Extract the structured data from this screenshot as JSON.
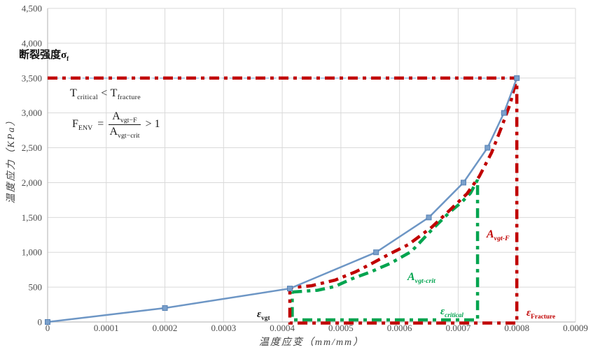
{
  "colors": {
    "series_blue": "#6D96C5",
    "marker_fill": "#7AA0CB",
    "marker_stroke": "#5580B3",
    "accent_red": "#C00000",
    "accent_green": "#00A44F",
    "reference_blue": "#9DC3E6",
    "gridline": "#D9D9D9",
    "axis_line": "#BFBFBF",
    "tick_text": "#4d4d4d"
  },
  "chart_data": {
    "type": "line",
    "title": "",
    "xlabel": "温度应变（mm/mm）",
    "ylabel": "温度应力（KPa）",
    "xlim": [
      0,
      0.0009
    ],
    "ylim": [
      0,
      4500
    ],
    "grid": true,
    "x_ticks": [
      {
        "v": 0,
        "label": "0"
      },
      {
        "v": 0.0001,
        "label": "0.0001"
      },
      {
        "v": 0.0002,
        "label": "0.0002"
      },
      {
        "v": 0.0003,
        "label": "0.0003"
      },
      {
        "v": 0.0004,
        "label": "0.0004"
      },
      {
        "v": 0.0005,
        "label": "0.0005"
      },
      {
        "v": 0.0006,
        "label": "0.0006"
      },
      {
        "v": 0.0007,
        "label": "0.0007"
      },
      {
        "v": 0.0008,
        "label": "0.0008"
      },
      {
        "v": 0.0009,
        "label": "0.0009"
      }
    ],
    "y_ticks": [
      {
        "v": 0,
        "label": "0"
      },
      {
        "v": 500,
        "label": "500"
      },
      {
        "v": 1000,
        "label": "1,000"
      },
      {
        "v": 1500,
        "label": "1,500"
      },
      {
        "v": 2000,
        "label": "2,000"
      },
      {
        "v": 2500,
        "label": "2,500"
      },
      {
        "v": 3000,
        "label": "3,000"
      },
      {
        "v": 3500,
        "label": "3,500"
      },
      {
        "v": 4000,
        "label": "4,000"
      },
      {
        "v": 4500,
        "label": "4,500"
      }
    ],
    "reference_line": {
      "name": "fracture-strength-level",
      "color": "#9DC3E6",
      "style": "dashed",
      "y": 3500,
      "x_from": 0,
      "x_to": 0.0008
    },
    "series": [
      {
        "name": "critical-envelope-Avgt-crit",
        "color": "#00A44F",
        "style": "dash-dot",
        "width": 4.5,
        "marker": "none",
        "path": [
          [
            0.000417,
            430
          ],
          [
            0.00046,
            455
          ],
          [
            0.00049,
            510
          ],
          [
            0.000519,
            620
          ],
          [
            0.000551,
            720
          ],
          [
            0.000584,
            840
          ],
          [
            0.00062,
            1010
          ],
          [
            0.000657,
            1340
          ],
          [
            0.000686,
            1580
          ],
          [
            0.000706,
            1720
          ],
          [
            0.000721,
            1850
          ],
          [
            0.000733,
            2040
          ],
          [
            0.000733,
            30
          ],
          [
            0.000417,
            30
          ],
          [
            0.000417,
            430
          ]
        ]
      },
      {
        "name": "fracture-envelope-Avgt-F",
        "color": "#C00000",
        "style": "dash-dot",
        "width": 4.5,
        "marker": "none",
        "path": [
          [
            0,
            3500
          ],
          [
            0.0008,
            3500
          ],
          [
            0.0008,
            -15
          ],
          [
            0.000413,
            -15
          ],
          [
            0.000413,
            490
          ],
          [
            0.00045,
            520
          ],
          [
            0.00049,
            600
          ],
          [
            0.000525,
            720
          ],
          [
            0.000555,
            850
          ],
          [
            0.000584,
            980
          ],
          [
            0.000615,
            1110
          ],
          [
            0.000655,
            1360
          ],
          [
            0.00069,
            1640
          ],
          [
            0.000715,
            1840
          ],
          [
            0.000736,
            2090
          ],
          [
            0.000757,
            2430
          ],
          [
            0.000775,
            2820
          ],
          [
            0.000789,
            3140
          ],
          [
            0.0008,
            3500
          ]
        ]
      },
      {
        "name": "temperature-stress-curve",
        "color": "#6D96C5",
        "style": "solid",
        "width": 2.5,
        "marker": "square",
        "points": [
          [
            0,
            0
          ],
          [
            0.0002,
            200
          ],
          [
            0.000413,
            480
          ],
          [
            0.00056,
            1000
          ],
          [
            0.00065,
            1500
          ],
          [
            0.000709,
            2000
          ],
          [
            0.00075,
            2500
          ],
          [
            0.000778,
            3000
          ],
          [
            0.0008,
            3500
          ]
        ]
      }
    ]
  },
  "annotations": {
    "fracture_strength": {
      "text": "断裂强度σ",
      "sub": "f"
    },
    "t_compare": {
      "t1": "T",
      "t1_sub": "critical",
      "op": "<",
      "t2": "T",
      "t2_sub": "fracture"
    },
    "formula": {
      "lhs": "F",
      "lhs_sub": "ENV",
      "eq": "=",
      "num": "A",
      "num_sub": "vgt−F",
      "den": "A",
      "den_sub": "vgt−crit",
      "tail": "> 1"
    },
    "eps_vgt": {
      "base": "ε",
      "sub": "vgt"
    },
    "eps_critical": {
      "base": "ε",
      "sub": "critical"
    },
    "eps_fracture": {
      "base": "ε",
      "sub": "Fracture"
    },
    "a_vgt_f": {
      "base": "A",
      "sub": "vgt-F"
    },
    "a_vgt_crit": {
      "base": "A",
      "sub": "vgt-crit"
    }
  }
}
